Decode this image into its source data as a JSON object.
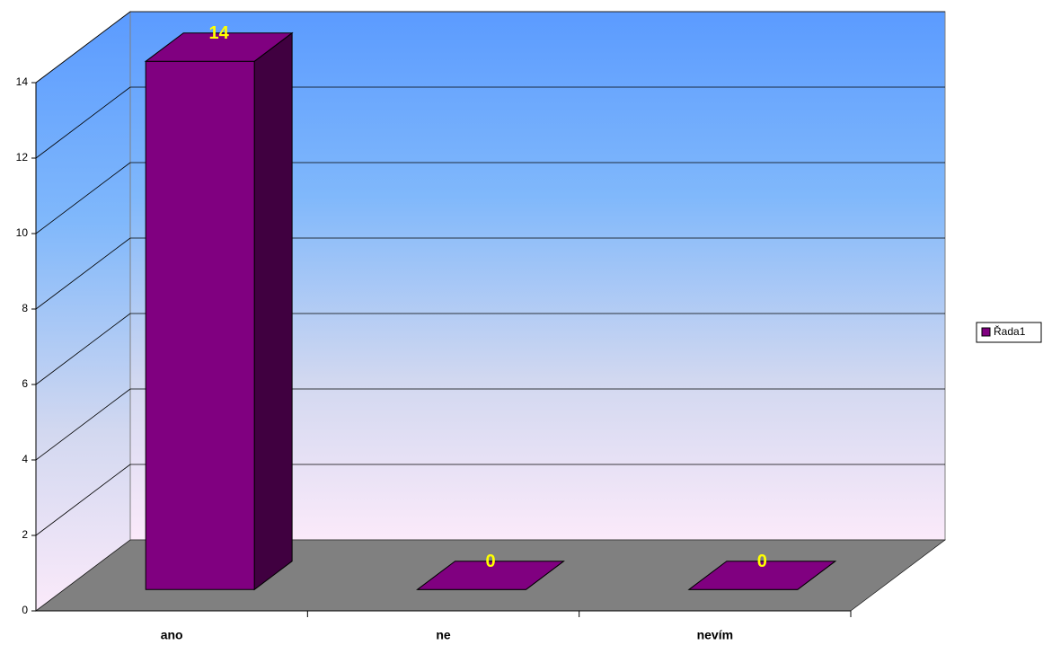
{
  "chart_data": {
    "type": "bar3d",
    "categories": [
      "ano",
      "ne",
      "nevím"
    ],
    "series": [
      {
        "name": "Řada1",
        "color": "#800080",
        "values": [
          14,
          0,
          0
        ]
      }
    ],
    "ylim": [
      0,
      14
    ],
    "yticks": [
      0,
      2,
      4,
      6,
      8,
      10,
      12,
      14
    ],
    "grid": true,
    "legend": "right"
  }
}
